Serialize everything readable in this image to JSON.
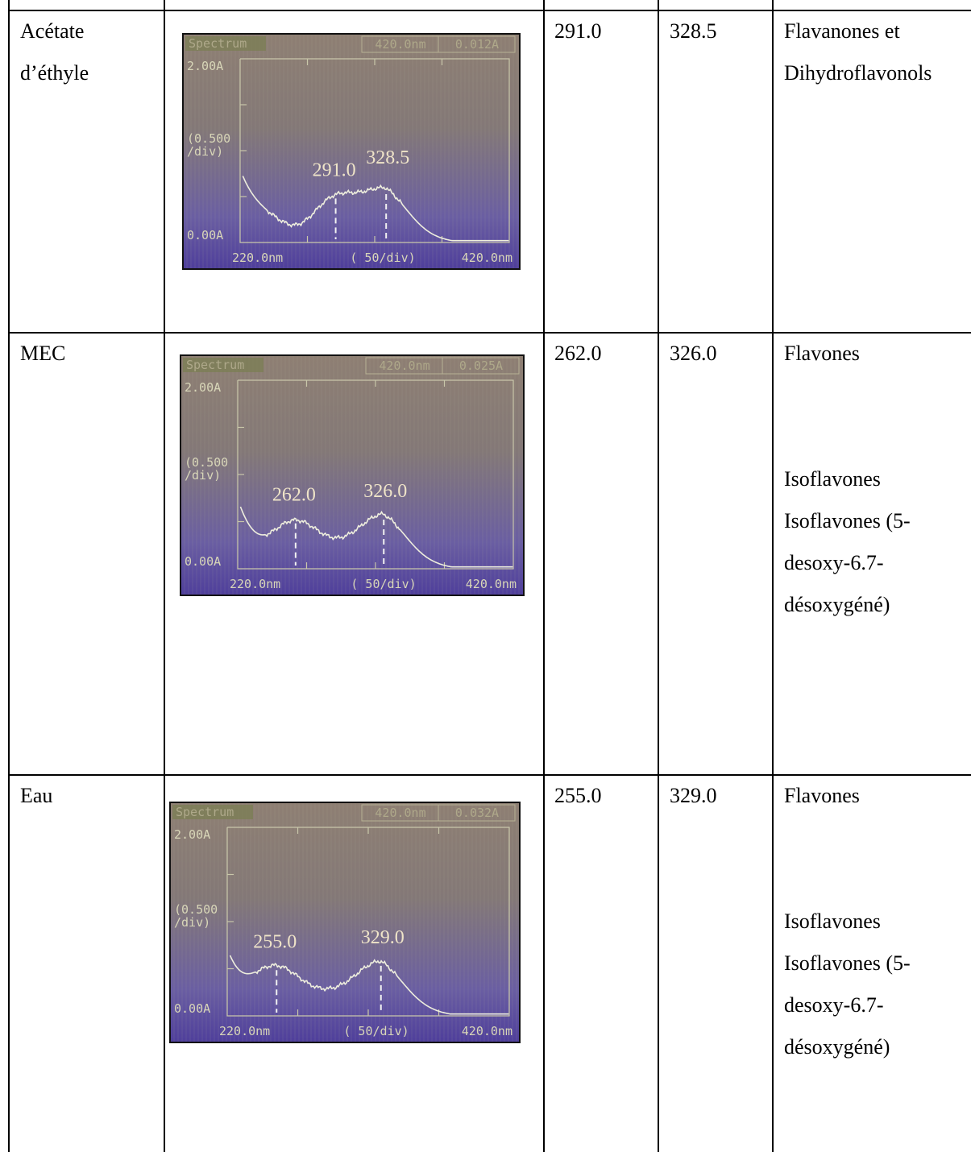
{
  "rows": [
    {
      "solvent_lines": [
        "Acétate",
        "d’éthyle"
      ],
      "band1": "291.0",
      "band2": "328.5",
      "class_lines": [
        "Flavanones et",
        "Dihydroflavonols"
      ],
      "screen": {
        "header_tag": "Spectrum",
        "header_wavelength": "420.0nm",
        "header_abs": "0.012A",
        "y_top_label": "2.00A",
        "y_mid_label": [
          "(0.500",
          "/div)"
        ],
        "y_bottom_label": "0.00A",
        "x_left_label": "220.0nm",
        "x_mid_label": "(  50/div)",
        "x_right_label": "420.0nm",
        "peak_labels": [
          "291.0",
          "328.5"
        ],
        "peaks_nm": [
          291.0,
          328.5
        ]
      }
    },
    {
      "solvent_lines": [
        "MEC"
      ],
      "band1": "262.0",
      "band2": "326.0",
      "class_lines": [
        "Flavones",
        "",
        "",
        "Isoflavones",
        "Isoflavones (5-",
        "desoxy-6.7-",
        "désoxygéné)"
      ],
      "screen": {
        "header_tag": "Spectrum",
        "header_wavelength": "420.0nm",
        "header_abs": "0.025A",
        "y_top_label": "2.00A",
        "y_mid_label": [
          "(0.500",
          "/div)"
        ],
        "y_bottom_label": "0.00A",
        "x_left_label": "220.0nm",
        "x_mid_label": "(  50/div)",
        "x_right_label": "420.0nm",
        "peak_labels": [
          "262.0",
          "326.0"
        ],
        "peaks_nm": [
          262.0,
          326.0
        ]
      }
    },
    {
      "solvent_lines": [
        "Eau"
      ],
      "band1": "255.0",
      "band2": "329.0",
      "class_lines": [
        "Flavones",
        "",
        "",
        "Isoflavones",
        "Isoflavones (5-",
        "desoxy-6.7-",
        "désoxygéné)"
      ],
      "screen": {
        "header_tag": "Spectrum",
        "header_wavelength": "420.0nm",
        "header_abs": "0.032A",
        "y_top_label": "2.00A",
        "y_mid_label": [
          "(0.500",
          "/div)"
        ],
        "y_bottom_label": "0.00A",
        "x_left_label": "220.0nm",
        "x_mid_label": "(  50/div)",
        "x_right_label": "420.0nm",
        "peak_labels": [
          "255.0",
          "329.0"
        ],
        "peaks_nm": [
          255.0,
          329.0
        ]
      }
    }
  ]
}
